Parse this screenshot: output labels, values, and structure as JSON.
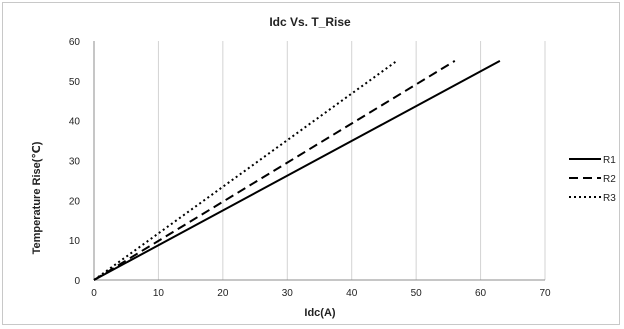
{
  "chart_data": {
    "type": "line",
    "title": "Idc Vs. T_Rise",
    "xlabel": "Idc(A)",
    "ylabel": "Temperature Rise(℃)",
    "xlim": [
      0,
      70
    ],
    "ylim": [
      0,
      60
    ],
    "x_ticks": [
      "0",
      "10",
      "20",
      "30",
      "40",
      "50",
      "60",
      "70"
    ],
    "y_ticks": [
      "0",
      "10",
      "20",
      "30",
      "40",
      "50",
      "60"
    ],
    "grid": "vertical",
    "legend_position": "right",
    "series": [
      {
        "name": "R1",
        "style": "solid",
        "color": "#000000",
        "x": [
          0,
          63
        ],
        "y": [
          0,
          55
        ]
      },
      {
        "name": "R2",
        "style": "dashed",
        "color": "#000000",
        "x": [
          0,
          56
        ],
        "y": [
          0,
          55
        ]
      },
      {
        "name": "R3",
        "style": "dotted",
        "color": "#000000",
        "x": [
          0,
          47
        ],
        "y": [
          0,
          55
        ]
      }
    ]
  }
}
